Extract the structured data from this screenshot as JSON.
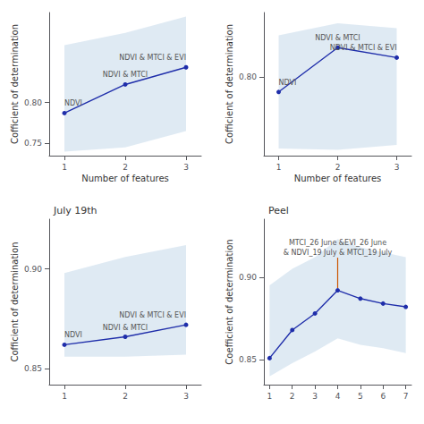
{
  "chart_data": [
    {
      "type": "line",
      "xlabel": "Number of features",
      "ylabel": "Cofficient of determination",
      "x": [
        1,
        2,
        3
      ],
      "values": [
        0.787,
        0.822,
        0.843
      ],
      "band": {
        "upper": [
          0.87,
          0.885,
          0.905
        ],
        "lower": [
          0.74,
          0.745,
          0.765
        ],
        "color": "#c5d8ea"
      },
      "color": "#1f2eaa",
      "marker": "circle",
      "point_labels": [
        "NDVI",
        "NDVI & MTCI",
        "NDVI & MTCI & EVI"
      ],
      "xlim": [
        0.75,
        3.25
      ],
      "xticks": [
        1,
        2,
        3
      ],
      "ylim": [
        0.735,
        0.91
      ],
      "yticks": [
        0.75,
        {
          "value": 0.8,
          "label": "0.80"
        }
      ],
      "grid": false
    },
    {
      "type": "line",
      "xlabel": "Number of features",
      "ylabel": "Cofficient of determination",
      "x": [
        1,
        2,
        3
      ],
      "values": [
        0.779,
        0.841,
        0.827
      ],
      "band": {
        "upper": [
          0.858,
          0.875,
          0.868
        ],
        "lower": [
          0.7,
          0.698,
          0.705
        ],
        "color": "#c5d8ea"
      },
      "color": "#1f2eaa",
      "marker": "circle",
      "point_labels": [
        "NDVI",
        "NDVI & MTCI",
        "NDVI & MTCI & EVI"
      ],
      "xlim": [
        0.75,
        3.25
      ],
      "xticks": [
        1,
        2,
        3
      ],
      "ylim": [
        0.69,
        0.89
      ],
      "yticks": [
        {
          "value": 0.8,
          "label": "0.80"
        }
      ],
      "grid": false
    },
    {
      "type": "line",
      "title": "July 19th",
      "ylabel": "Cofficient of determination",
      "x": [
        1,
        2,
        3
      ],
      "values": [
        0.862,
        0.866,
        0.872
      ],
      "band": {
        "upper": [
          0.898,
          0.906,
          0.912
        ],
        "lower": [
          0.856,
          0.856,
          0.857
        ],
        "color": "#c5d8ea"
      },
      "color": "#1f2eaa",
      "marker": "circle",
      "point_labels": [
        "NDVI",
        "NDVI & MTCI",
        "NDVI & MTCI & EVI"
      ],
      "xlim": [
        0.75,
        3.25
      ],
      "xticks": [
        1,
        2,
        3
      ],
      "ylim": [
        0.842,
        0.925
      ],
      "yticks": [
        0.85,
        {
          "value": 0.9,
          "label": "0.90"
        }
      ],
      "grid": false
    },
    {
      "type": "line",
      "title": "Peel",
      "ylabel": "Coefficient of determination",
      "x": [
        1,
        2,
        3,
        4,
        5,
        6,
        7
      ],
      "values": [
        0.851,
        0.868,
        0.878,
        0.892,
        0.887,
        0.884,
        0.882
      ],
      "band": {
        "upper": [
          0.895,
          0.905,
          0.912,
          0.923,
          0.918,
          0.915,
          0.912
        ],
        "lower": [
          0.84,
          0.848,
          0.855,
          0.863,
          0.859,
          0.857,
          0.854
        ],
        "color": "#c5d8ea"
      },
      "color": "#1f2eaa",
      "marker": "circle",
      "annotations": [
        {
          "text": "MTCI_26 June &EVI_26 June\n& NDVI_19 July & MTCI_19 July",
          "x": 4,
          "y": 0.892,
          "color": "#cc5500"
        }
      ],
      "xlim": [
        0.75,
        7.25
      ],
      "xticks": [
        1,
        2,
        3,
        4,
        5,
        6,
        7
      ],
      "ylim": [
        0.835,
        0.935
      ],
      "yticks": [
        0.85,
        {
          "value": 0.9,
          "label": "0.90"
        }
      ],
      "grid": false
    }
  ]
}
